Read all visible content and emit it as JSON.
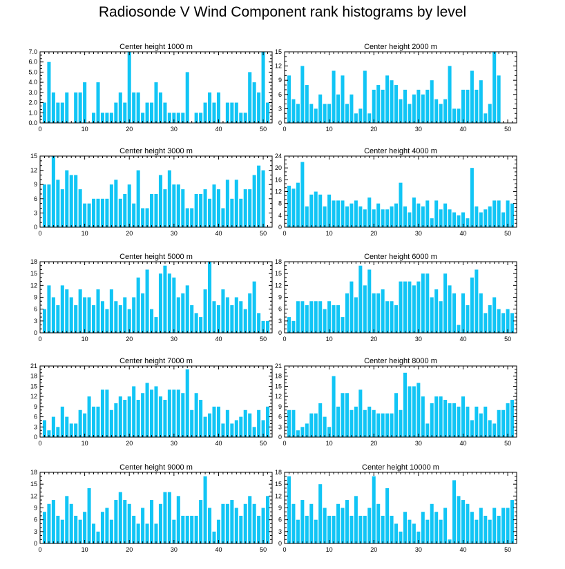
{
  "title": "Radiosonde V Wind Component rank histograms by level",
  "chart_data": [
    {
      "type": "bar",
      "title": "Center height 1000 m",
      "xlim": [
        0,
        52
      ],
      "ylim": [
        0,
        7
      ],
      "xticks": [
        0,
        10,
        20,
        30,
        40,
        50
      ],
      "yticks": [
        "0.0",
        "1.0",
        "2.0",
        "3.0",
        "4.0",
        "5.0",
        "6.0",
        "7.0"
      ],
      "values": [
        2,
        6,
        3,
        2,
        2,
        3,
        0,
        3,
        3,
        4,
        0,
        1,
        4,
        1,
        1,
        1,
        2,
        3,
        2,
        7,
        3,
        3,
        1,
        2,
        2,
        4,
        3,
        2,
        1,
        1,
        1,
        1,
        5,
        0,
        1,
        1,
        2,
        3,
        2,
        3,
        0,
        2,
        2,
        2,
        1,
        1,
        5,
        4,
        3,
        7,
        2
      ]
    },
    {
      "type": "bar",
      "title": "Center height 2000 m",
      "xlim": [
        0,
        52
      ],
      "ylim": [
        0,
        15
      ],
      "xticks": [
        0,
        10,
        20,
        30,
        40,
        50
      ],
      "yticks": [
        "0",
        "3",
        "6",
        "9",
        "12",
        "15"
      ],
      "values": [
        10,
        5,
        4,
        12,
        8,
        4,
        3,
        6,
        4,
        4,
        11,
        6,
        10,
        4,
        6,
        2,
        3,
        11,
        2,
        7,
        8,
        7,
        10,
        9,
        8,
        5,
        7,
        4,
        6,
        7,
        6,
        7,
        9,
        5,
        4,
        5,
        12,
        3,
        3,
        7,
        7,
        11,
        7,
        9,
        2,
        4,
        15,
        10
      ]
    },
    {
      "type": "bar",
      "title": "Center height 3000 m",
      "xlim": [
        0,
        52
      ],
      "ylim": [
        0,
        15
      ],
      "xticks": [
        0,
        10,
        20,
        30,
        40,
        50
      ],
      "yticks": [
        "0",
        "3",
        "6",
        "9",
        "12",
        "15"
      ],
      "values": [
        9,
        9,
        15,
        10,
        8,
        12,
        11,
        11,
        8,
        5,
        5,
        6,
        6,
        6,
        6,
        9,
        10,
        6,
        7,
        9,
        5,
        12,
        4,
        4,
        7,
        7,
        11,
        8,
        12,
        9,
        9,
        8,
        4,
        4,
        7,
        7,
        8,
        6,
        9,
        8,
        4,
        10,
        6,
        10,
        6,
        8,
        8,
        11,
        13,
        12
      ]
    },
    {
      "type": "bar",
      "title": "Center height 4000 m",
      "xlim": [
        0,
        52
      ],
      "ylim": [
        0,
        24
      ],
      "xticks": [
        0,
        10,
        20,
        30,
        40,
        50
      ],
      "yticks": [
        "0",
        "4",
        "8",
        "12",
        "16",
        "20",
        "24"
      ],
      "values": [
        14,
        13,
        15,
        22,
        7,
        11,
        12,
        11,
        7,
        11,
        9,
        9,
        9,
        7,
        8,
        9,
        7,
        6,
        10,
        6,
        8,
        6,
        6,
        7,
        8,
        15,
        7,
        5,
        10,
        8,
        7,
        9,
        3,
        9,
        6,
        8,
        6,
        5,
        4,
        5,
        3,
        20,
        7,
        5,
        6,
        7,
        9,
        9,
        5,
        9,
        8
      ]
    },
    {
      "type": "bar",
      "title": "Center height 5000 m",
      "xlim": [
        0,
        52
      ],
      "ylim": [
        0,
        18
      ],
      "xticks": [
        0,
        10,
        20,
        30,
        40,
        50
      ],
      "yticks": [
        "0",
        "3",
        "6",
        "9",
        "12",
        "15",
        "18"
      ],
      "values": [
        6,
        12,
        9,
        7,
        12,
        11,
        9,
        7,
        11,
        9,
        9,
        7,
        11,
        8,
        6,
        11,
        8,
        7,
        9,
        6,
        9,
        14,
        10,
        16,
        6,
        4,
        15,
        17,
        15,
        14,
        9,
        10,
        12,
        7,
        5,
        4,
        11,
        18,
        8,
        7,
        11,
        9,
        7,
        9,
        8,
        6,
        10,
        13,
        5,
        3,
        3
      ]
    },
    {
      "type": "bar",
      "title": "Center height 6000 m",
      "xlim": [
        0,
        52
      ],
      "ylim": [
        0,
        18
      ],
      "xticks": [
        0,
        10,
        20,
        30,
        40,
        50
      ],
      "yticks": [
        "0",
        "3",
        "6",
        "9",
        "12",
        "15",
        "18"
      ],
      "values": [
        4,
        3,
        8,
        8,
        7,
        8,
        8,
        8,
        6,
        8,
        7,
        7,
        4,
        10,
        13,
        9,
        17,
        12,
        16,
        10,
        10,
        11,
        8,
        8,
        7,
        13,
        13,
        13,
        12,
        13,
        15,
        15,
        9,
        11,
        8,
        15,
        12,
        10,
        2,
        10,
        7,
        14,
        16,
        10,
        5,
        7,
        9,
        6,
        5,
        6,
        5
      ]
    },
    {
      "type": "bar",
      "title": "Center height 7000 m",
      "xlim": [
        0,
        52
      ],
      "ylim": [
        0,
        21
      ],
      "xticks": [
        0,
        10,
        20,
        30,
        40,
        50
      ],
      "yticks": [
        "0",
        "3",
        "6",
        "9",
        "12",
        "15",
        "18",
        "21"
      ],
      "values": [
        5,
        2,
        6,
        3,
        9,
        6,
        4,
        4,
        8,
        7,
        12,
        9,
        9,
        14,
        14,
        8,
        10,
        12,
        11,
        12,
        15,
        11,
        13,
        16,
        14,
        15,
        12,
        11,
        14,
        14,
        14,
        13,
        20,
        8,
        13,
        11,
        6,
        7,
        9,
        9,
        4,
        8,
        4,
        5,
        6,
        8,
        7,
        3,
        8,
        5,
        9
      ]
    },
    {
      "type": "bar",
      "title": "Center height 8000 m",
      "xlim": [
        0,
        52
      ],
      "ylim": [
        0,
        21
      ],
      "xticks": [
        0,
        10,
        20,
        30,
        40,
        50
      ],
      "yticks": [
        "0",
        "3",
        "6",
        "9",
        "12",
        "15",
        "18",
        "21"
      ],
      "values": [
        8,
        8,
        2,
        3,
        4,
        7,
        7,
        10,
        6,
        3,
        18,
        9,
        13,
        13,
        8,
        9,
        14,
        8,
        9,
        8,
        7,
        7,
        7,
        7,
        13,
        8,
        19,
        15,
        15,
        16,
        12,
        4,
        10,
        12,
        12,
        11,
        10,
        10,
        9,
        12,
        9,
        5,
        9,
        7,
        9,
        5,
        4,
        8,
        8,
        10,
        11
      ]
    },
    {
      "type": "bar",
      "title": "Center height 9000 m",
      "xlim": [
        0,
        52
      ],
      "ylim": [
        0,
        18
      ],
      "xticks": [
        0,
        10,
        20,
        30,
        40,
        50
      ],
      "yticks": [
        "0",
        "3",
        "6",
        "9",
        "12",
        "15",
        "18"
      ],
      "values": [
        8,
        10,
        11,
        7,
        6,
        12,
        10,
        7,
        6,
        8,
        14,
        5,
        3,
        8,
        9,
        6,
        11,
        13,
        11,
        10,
        7,
        5,
        9,
        5,
        11,
        5,
        10,
        13,
        13,
        6,
        12,
        7,
        7,
        7,
        7,
        11,
        17,
        9,
        3,
        6,
        10,
        10,
        11,
        9,
        7,
        10,
        12,
        10,
        7,
        9,
        12
      ]
    },
    {
      "type": "bar",
      "title": "Center height 10000 m",
      "xlim": [
        0,
        52
      ],
      "ylim": [
        0,
        18
      ],
      "xticks": [
        0,
        10,
        20,
        30,
        40,
        50
      ],
      "yticks": [
        "0",
        "3",
        "6",
        "9",
        "12",
        "15",
        "18"
      ],
      "values": [
        17,
        10,
        6,
        11,
        7,
        10,
        6,
        15,
        9,
        7,
        7,
        10,
        9,
        11,
        7,
        12,
        7,
        7,
        9,
        17,
        10,
        7,
        14,
        7,
        5,
        3,
        8,
        6,
        5,
        3,
        8,
        6,
        10,
        8,
        6,
        9,
        1,
        16,
        12,
        11,
        10,
        8,
        6,
        9,
        7,
        6,
        9,
        7,
        9,
        9,
        11
      ]
    }
  ]
}
